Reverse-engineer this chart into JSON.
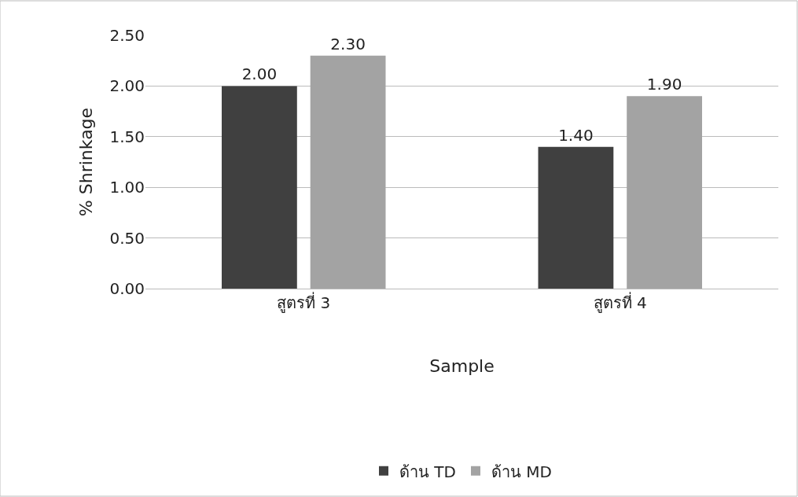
{
  "chart_data": {
    "type": "bar",
    "xlabel": "Sample",
    "ylabel": "% Shrinkage",
    "categories": [
      "สูตรที่ 3",
      "สูตรที่ 4"
    ],
    "series": [
      {
        "name": "ด้าน TD",
        "color": "#404040",
        "values": [
          2.0,
          1.4
        ],
        "value_labels": [
          "2.00",
          "1.40"
        ]
      },
      {
        "name": "ด้าน MD",
        "color": "#a3a3a3",
        "values": [
          2.3,
          1.9
        ],
        "value_labels": [
          "2.30",
          "1.90"
        ]
      }
    ],
    "ylim": [
      0,
      2.5
    ],
    "yticks": [
      {
        "value": 0,
        "label": "0.00"
      },
      {
        "value": 0.5,
        "label": "0.50"
      },
      {
        "value": 1,
        "label": "1.00"
      },
      {
        "value": 1.5,
        "label": "1.50"
      },
      {
        "value": 2,
        "label": "2.00"
      },
      {
        "value": 2.5,
        "label": "2.50"
      }
    ],
    "grid": "y",
    "legend": "bottom"
  }
}
